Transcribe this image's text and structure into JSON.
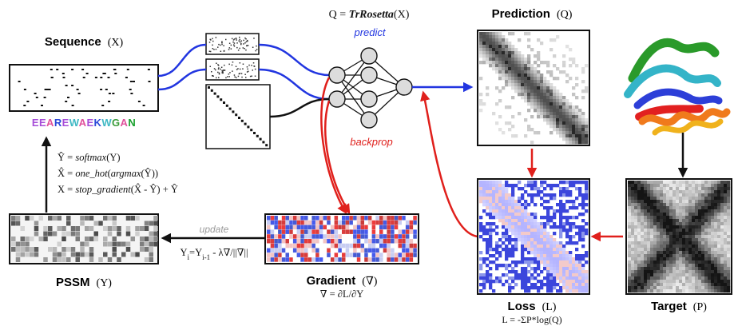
{
  "sequence": {
    "title": "Sequence",
    "symbol": "(X)",
    "letters": "EEAREWAEKWGAN"
  },
  "letter_colors": {
    "E": "#a64cd8",
    "A": "#e0509b",
    "R": "#2a48d8",
    "W": "#3fb8c4",
    "K": "#2a48d8",
    "G": "#3a9b3a",
    "N": "#18a02c"
  },
  "model": {
    "equation": "Q = TrRosetta(X)",
    "eq_prefix": "Q = ",
    "eq_fn": "TrRosetta",
    "eq_suffix": "(X)"
  },
  "labels": {
    "predict": "predict",
    "backprop": "backprop",
    "update": "update"
  },
  "prediction": {
    "title": "Prediction",
    "symbol": "(Q)"
  },
  "loss": {
    "title": "Loss",
    "symbol": "(L)",
    "formula": "L = -ΣP*log(Q)"
  },
  "target": {
    "title": "Target",
    "symbol": "(P)"
  },
  "gradient": {
    "title": "Gradient",
    "symbol": "(∇)",
    "formula": "∇ = ∂L/∂Y"
  },
  "pssm": {
    "title": "PSSM",
    "symbol": "(Y)"
  },
  "equations": {
    "line1": "Ŷ = softmax(Y)",
    "line2": "X̂ = one_hot(argmax(Ŷ))",
    "line3": "X = stop_gradient(X̂ - Ŷ) + Ŷ"
  },
  "update_rule": "Yi=Yi-1 - λ∇/||∇||",
  "colors": {
    "predict": "#2236e0",
    "backprop": "#e0201c",
    "black": "#111111"
  }
}
